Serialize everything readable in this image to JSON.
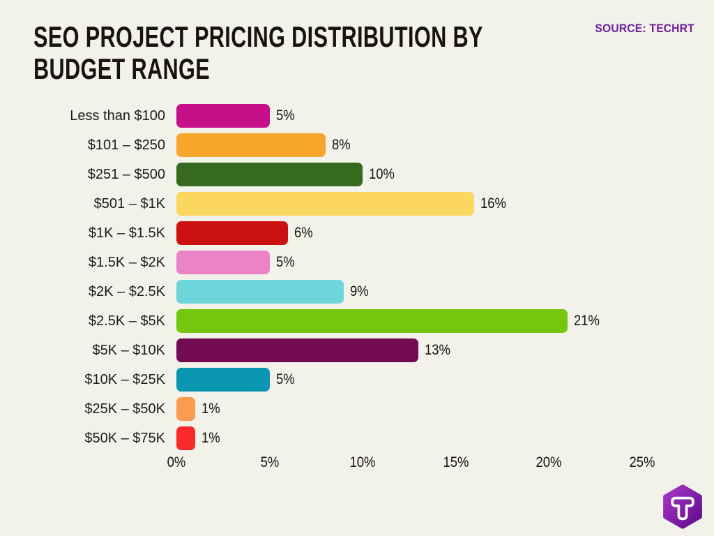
{
  "page": {
    "background_color": "#f2f1ea"
  },
  "header": {
    "title_line1": "SEO PROJECT PRICING DISTRIBUTION BY",
    "title_line2": "BUDGET RANGE",
    "source_label": "SOURCE: TECHRT",
    "source_color": "#6e1f9c"
  },
  "chart_data": {
    "type": "bar",
    "orientation": "horizontal",
    "title": "SEO Project Pricing Distribution by Budget Range",
    "source": "TECHRT",
    "categories": [
      "Less than $100",
      "$101 – $250",
      "$251 – $500",
      "$501 – $1K",
      "$1K – $1.5K",
      "$1.5K – $2K",
      "$2K – $2.5K",
      "$2.5K – $5K",
      "$5K – $10K",
      "$10K – $25K",
      "$25K – $50K",
      "$50K – $75K"
    ],
    "values": [
      5,
      8,
      10,
      16,
      6,
      5,
      9,
      21,
      13,
      5,
      1,
      1
    ],
    "value_labels": [
      "5%",
      "8%",
      "10%",
      "16%",
      "6%",
      "5%",
      "9%",
      "21%",
      "13%",
      "5%",
      "1%",
      "1%"
    ],
    "bar_colors": [
      "#c5108a",
      "#f8a62b",
      "#366a1e",
      "#fcd75f",
      "#cc1210",
      "#ec83c6",
      "#6ed5da",
      "#75c70d",
      "#730a52",
      "#0a95b1",
      "#f99b50",
      "#f92a27"
    ],
    "x_ticks": [
      "0%",
      "5%",
      "10%",
      "15%",
      "20%",
      "25%"
    ],
    "xlim": [
      0,
      25
    ],
    "grid": false,
    "legend": "none"
  },
  "logo": {
    "name": "TECHRT hexagon logo",
    "letter": "T",
    "gradient_top": "#a637c4",
    "gradient_bottom": "#600b8e",
    "letter_color": "#ffffff"
  }
}
